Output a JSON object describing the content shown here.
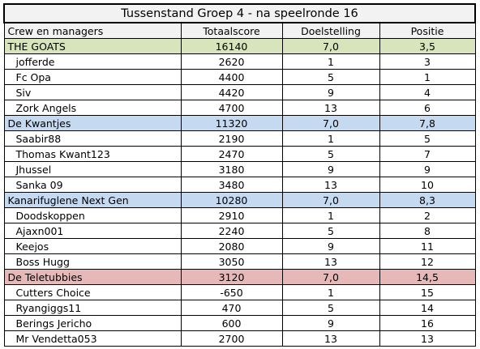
{
  "title": "Tussenstand Groep 4 - na speelronde 16",
  "headers": {
    "name": "Crew en managers",
    "total": "Totaalscore",
    "goal": "Doelstelling",
    "position": "Positie"
  },
  "colors": {
    "header": "#f2f2f2",
    "team1": "#d8e4bc",
    "team2": "#c5d9f1",
    "team3": "#c5d9f1",
    "team4": "#e6b8b7"
  },
  "teams": [
    {
      "name": "THE GOATS",
      "total": "16140",
      "goal": "7,0",
      "position": "3,5",
      "members": [
        {
          "name": "jofferde",
          "total": "2620",
          "goal": "1",
          "position": "3"
        },
        {
          "name": "Fc Opa",
          "total": "4400",
          "goal": "5",
          "position": "1"
        },
        {
          "name": "Siv",
          "total": "4420",
          "goal": "9",
          "position": "4"
        },
        {
          "name": "Zork Angels",
          "total": "4700",
          "goal": "13",
          "position": "6"
        }
      ]
    },
    {
      "name": "De Kwantjes",
      "total": "11320",
      "goal": "7,0",
      "position": "7,8",
      "members": [
        {
          "name": "Saabir88",
          "total": "2190",
          "goal": "1",
          "position": "5"
        },
        {
          "name": "Thomas Kwant123",
          "total": "2470",
          "goal": "5",
          "position": "7"
        },
        {
          "name": "Jhussel",
          "total": "3180",
          "goal": "9",
          "position": "9"
        },
        {
          "name": "Sanka 09",
          "total": "3480",
          "goal": "13",
          "position": "10"
        }
      ]
    },
    {
      "name": "Kanarifuglene Next Gen",
      "total": "10280",
      "goal": "7,0",
      "position": "8,3",
      "members": [
        {
          "name": "Doodskoppen",
          "total": "2910",
          "goal": "1",
          "position": "2"
        },
        {
          "name": "Ajaxn001",
          "total": "2240",
          "goal": "5",
          "position": "8"
        },
        {
          "name": "Keejos",
          "total": "2080",
          "goal": "9",
          "position": "11"
        },
        {
          "name": "Boss Hugg",
          "total": "3050",
          "goal": "13",
          "position": "12"
        }
      ]
    },
    {
      "name": "De Teletubbies",
      "total": "3120",
      "goal": "7,0",
      "position": "14,5",
      "members": [
        {
          "name": "Cutters Choice",
          "total": "-650",
          "goal": "1",
          "position": "15"
        },
        {
          "name": "Ryangiggs11",
          "total": "470",
          "goal": "5",
          "position": "14"
        },
        {
          "name": "Berings Jericho",
          "total": "600",
          "goal": "9",
          "position": "16"
        },
        {
          "name": "Mr Vendetta053",
          "total": "2700",
          "goal": "13",
          "position": "13"
        }
      ]
    }
  ]
}
